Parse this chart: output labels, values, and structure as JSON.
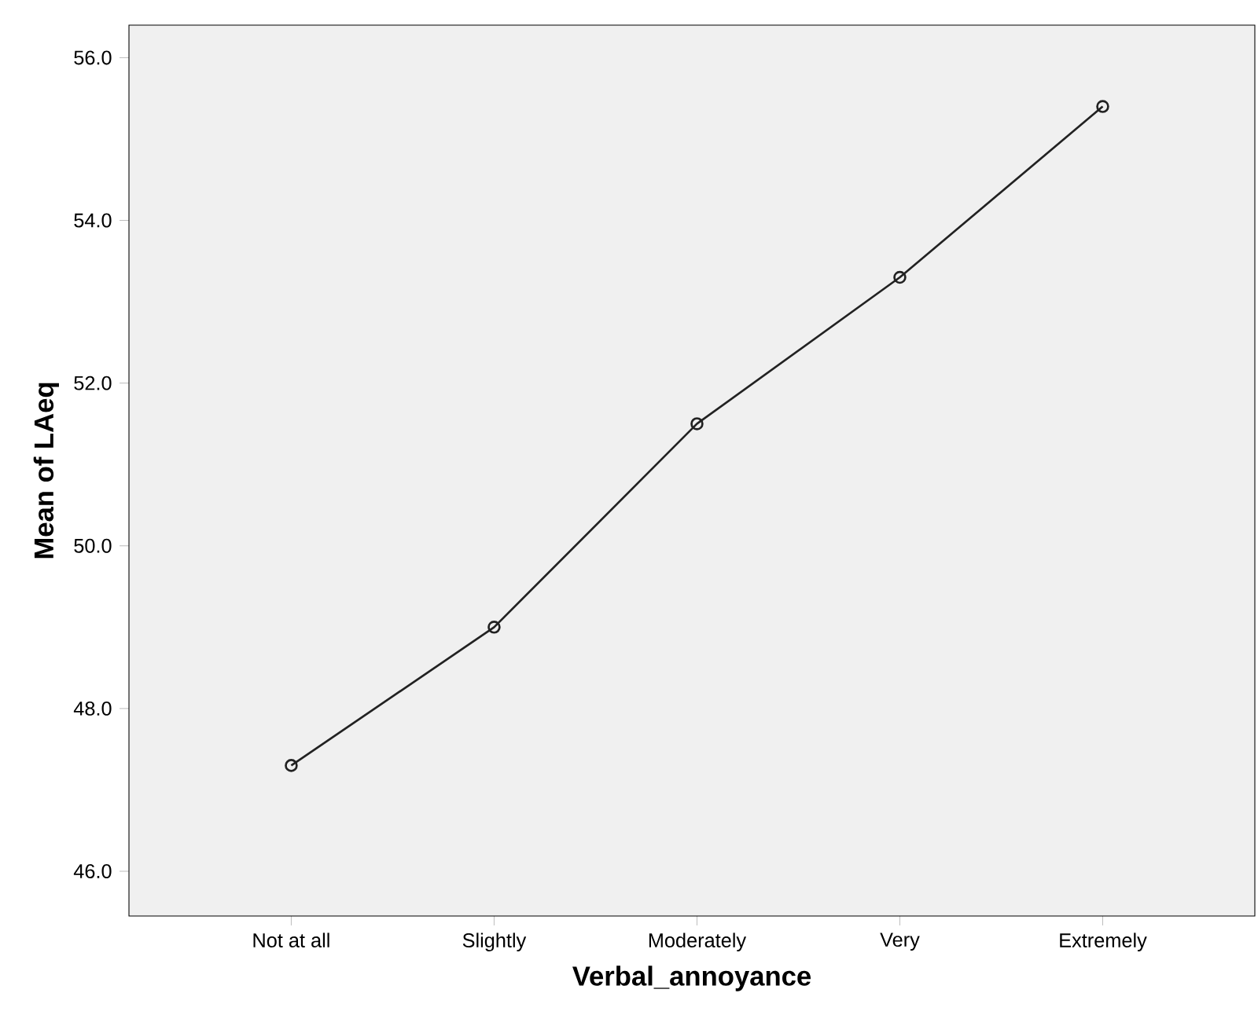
{
  "chart_data": {
    "type": "line",
    "xlabel": "Verbal_annoyance",
    "ylabel": "Mean of LAeq",
    "categories": [
      "Not at all",
      "Slightly",
      "Moderately",
      "Very",
      "Extremely"
    ],
    "values": [
      47.3,
      49.0,
      51.5,
      53.3,
      55.4
    ],
    "color": "#222222",
    "marker": "circle",
    "line_style": "solid",
    "grid": false,
    "ylim": [
      45.45,
      56.4
    ],
    "yticks": [
      {
        "value": 46,
        "label": "46.0"
      },
      {
        "value": 48,
        "label": "48.0"
      },
      {
        "value": 50,
        "label": "50.0"
      },
      {
        "value": 52,
        "label": "52.0"
      },
      {
        "value": 54,
        "label": "54.0"
      },
      {
        "value": 56,
        "label": "56.0"
      }
    ]
  }
}
